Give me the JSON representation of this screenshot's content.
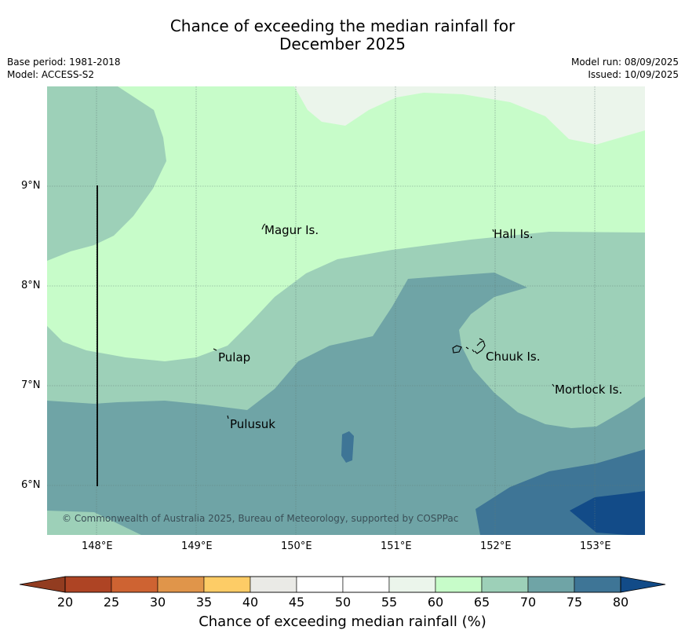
{
  "title_line1": "Chance of exceeding the median rainfall for",
  "title_line2": "December 2025",
  "meta": {
    "base_period": "Base period: 1981-2018",
    "model": "Model: ACCESS-S2",
    "model_run": "Model run: 08/09/2025",
    "issued": "Issued: 10/09/2025"
  },
  "map": {
    "lon_range": [
      147.5,
      153.5
    ],
    "lat_range": [
      5.5,
      10.0
    ],
    "lon_ticks": [
      "148°E",
      "149°E",
      "150°E",
      "151°E",
      "152°E",
      "153°E"
    ],
    "lat_ticks": [
      "9°N",
      "8°N",
      "7°N",
      "6°N"
    ],
    "places": [
      {
        "name": "Magur Is.",
        "lon": 149.65,
        "lat": 8.58
      },
      {
        "name": "Hall Is.",
        "lon": 151.97,
        "lat": 8.55
      },
      {
        "name": "Pulap",
        "lon": 149.2,
        "lat": 7.35
      },
      {
        "name": "Chuuk Is.",
        "lon": 151.85,
        "lat": 7.4
      },
      {
        "name": "Mortlock Is.",
        "lon": 152.6,
        "lat": 7.0
      },
      {
        "name": "Pulusuk",
        "lon": 149.3,
        "lat": 6.68
      }
    ],
    "copyright": "© Commonwealth of Australia 2025, Bureau of Meteorology, supported by COSPPac"
  },
  "colorbar": {
    "title": "Chance of exceeding median rainfall (%)",
    "ticks": [
      "20",
      "25",
      "30",
      "35",
      "40",
      "45",
      "50",
      "55",
      "60",
      "65",
      "70",
      "75",
      "80"
    ],
    "colors": [
      "#ae4424",
      "#ce6332",
      "#e0954a",
      "#fdcc66",
      "#eaeae6",
      "#ffffff",
      "#ffffff",
      "#ebf5eb",
      "#c7fcc9",
      "#9dd0b8",
      "#6fa4a6",
      "#3e7596",
      "#124b88"
    ],
    "under_color": "#923c20"
  },
  "colors": {
    "band_55_60": "#ebf5eb",
    "band_60_65": "#c7fcc9",
    "band_65_70": "#9dd0b8",
    "band_70_75": "#6fa4a6",
    "band_75_80": "#3e7596",
    "band_80_plus": "#124b88"
  }
}
